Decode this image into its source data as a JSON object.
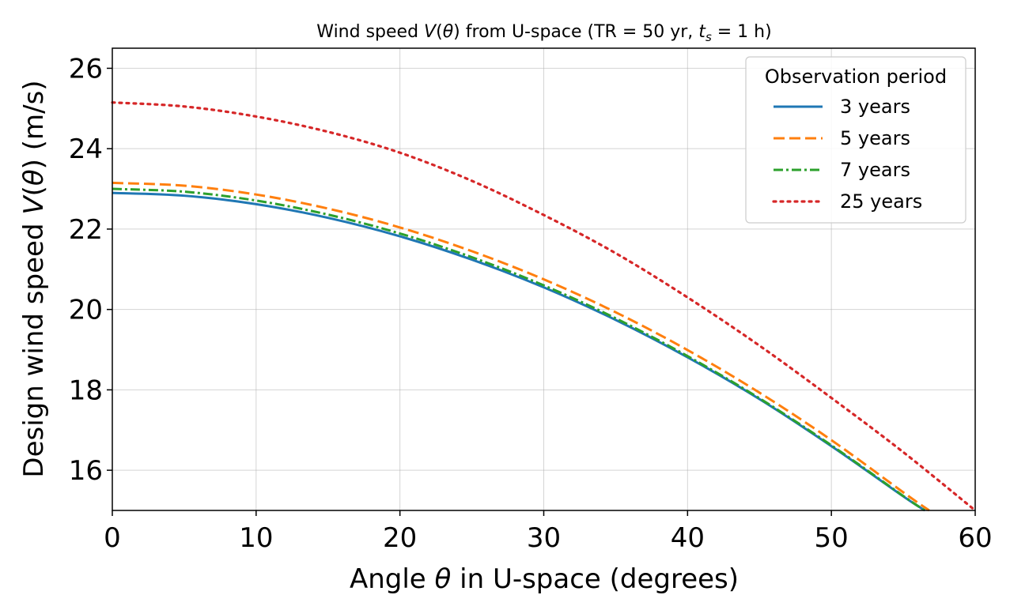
{
  "chart_data": {
    "type": "line",
    "title": "Wind speed V(θ) from U-space (TR = 50 yr, t_s = 1 h)",
    "title_parts": {
      "prefix": "Wind speed ",
      "v": "V",
      "theta_open": "(",
      "theta": "θ",
      "theta_close": ")",
      "middle": " from U-space (TR = 50 yr, ",
      "t": "t",
      "t_sub": "s",
      "suffix": " = 1 h)"
    },
    "xlabel": "Angle θ in U-space (degrees)",
    "xlabel_parts": {
      "prefix": "Angle ",
      "theta": "θ",
      "suffix": " in U-space (degrees)"
    },
    "ylabel": "Design wind speed V(θ) (m/s)",
    "ylabel_parts": {
      "prefix": "Design wind speed ",
      "v": "V",
      "open": "(",
      "theta": "θ",
      "close": ")",
      "suffix": " (m/s)"
    },
    "xlim": [
      0,
      60
    ],
    "ylim": [
      15,
      26.5
    ],
    "xticks": [
      0,
      10,
      20,
      30,
      40,
      50,
      60
    ],
    "yticks": [
      16,
      18,
      20,
      22,
      24,
      26
    ],
    "grid": true,
    "legend": {
      "title": "Observation period",
      "position": "top-right"
    },
    "series": [
      {
        "name": "3 years",
        "color": "#1f77b4",
        "style": "solid",
        "x": [
          0,
          5,
          10,
          15,
          20,
          25,
          30,
          35,
          40,
          45,
          50,
          55,
          56.5
        ],
        "y": [
          22.9,
          22.83,
          22.62,
          22.28,
          21.82,
          21.24,
          20.55,
          19.74,
          18.81,
          17.77,
          16.6,
          15.35,
          15.0
        ]
      },
      {
        "name": "5 years",
        "color": "#ff7f0e",
        "style": "dashed",
        "x": [
          0,
          5,
          10,
          15,
          20,
          25,
          30,
          35,
          40,
          45,
          50,
          55,
          56.8
        ],
        "y": [
          23.15,
          23.08,
          22.86,
          22.51,
          22.04,
          21.45,
          20.75,
          19.93,
          18.99,
          17.93,
          16.75,
          15.45,
          15.0
        ]
      },
      {
        "name": "7 years",
        "color": "#2ca02c",
        "style": "dashdot",
        "x": [
          0,
          5,
          10,
          15,
          20,
          25,
          30,
          35,
          40,
          45,
          50,
          55,
          56.5
        ],
        "y": [
          23.0,
          22.93,
          22.71,
          22.36,
          21.89,
          21.3,
          20.6,
          19.78,
          18.84,
          17.79,
          16.62,
          15.36,
          15.0
        ]
      },
      {
        "name": "25 years",
        "color": "#d62728",
        "style": "dotted",
        "x": [
          0,
          5,
          10,
          15,
          20,
          25,
          30,
          35,
          40,
          45,
          50,
          55,
          60
        ],
        "y": [
          25.15,
          25.05,
          24.8,
          24.42,
          23.9,
          23.2,
          22.35,
          21.4,
          20.3,
          19.1,
          17.8,
          16.45,
          15.0
        ]
      }
    ]
  }
}
